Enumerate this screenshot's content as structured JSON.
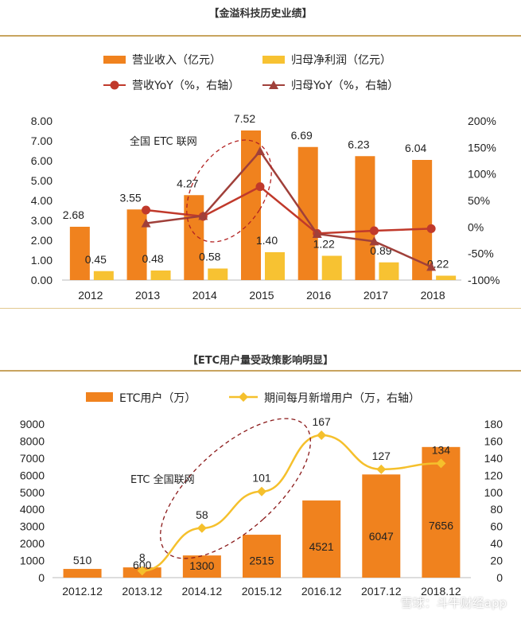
{
  "watermark": "雪球：斗牛财经app",
  "chart_data": [
    {
      "type": "bar",
      "title": "【金溢科技历史业绩】",
      "annotation": "全国 ETC 联网",
      "categories": [
        "2012",
        "2013",
        "2014",
        "2015",
        "2016",
        "2017",
        "2018"
      ],
      "y_left": {
        "ticks": [
          "0.00",
          "1.00",
          "2.00",
          "3.00",
          "4.00",
          "5.00",
          "6.00",
          "7.00",
          "8.00"
        ],
        "ylim": [
          0,
          8
        ]
      },
      "y_right": {
        "ticks": [
          "-100%",
          "-50%",
          "0%",
          "50%",
          "100%",
          "150%",
          "200%"
        ],
        "ylim": [
          -100,
          200
        ]
      },
      "series": [
        {
          "name": "营业收入（亿元）",
          "kind": "bar",
          "axis": "left",
          "color": "#f0821e",
          "values": [
            2.68,
            3.55,
            4.27,
            7.52,
            6.69,
            6.23,
            6.04
          ],
          "labels": [
            "2.68",
            "3.55",
            "4.27",
            "7.52",
            "6.69",
            "6.23",
            "6.04"
          ]
        },
        {
          "name": "归母净利润（亿元）",
          "kind": "bar",
          "axis": "left",
          "color": "#f7c232",
          "values": [
            0.45,
            0.48,
            0.58,
            1.4,
            1.22,
            0.89,
            0.22
          ],
          "labels": [
            "0.45",
            "0.48",
            "0.58",
            "1.40",
            "1.22",
            "0.89",
            "0.22"
          ]
        },
        {
          "name": "营收YoY（%，右轴）",
          "kind": "line",
          "axis": "right",
          "marker": "circle",
          "color": "#c0392b",
          "values": [
            null,
            32,
            20,
            76,
            -12,
            -7,
            -3
          ]
        },
        {
          "name": "归母YoY（%，右轴）",
          "kind": "line",
          "axis": "right",
          "marker": "triangle",
          "color": "#a0403a",
          "values": [
            null,
            7,
            21,
            143,
            -13,
            -27,
            -75
          ]
        }
      ]
    },
    {
      "type": "bar",
      "title": "【ETC用户量受政策影响明显】",
      "annotation": "ETC 全国联网",
      "categories": [
        "2012.12",
        "2013.12",
        "2014.12",
        "2015.12",
        "2016.12",
        "2017.12",
        "2018.12"
      ],
      "y_left": {
        "ticks": [
          "0",
          "1000",
          "2000",
          "3000",
          "4000",
          "5000",
          "6000",
          "7000",
          "8000",
          "9000"
        ],
        "ylim": [
          0,
          9000
        ]
      },
      "y_right": {
        "ticks": [
          "0",
          "20",
          "40",
          "60",
          "80",
          "100",
          "120",
          "140",
          "160",
          "180"
        ],
        "ylim": [
          0,
          180
        ]
      },
      "series": [
        {
          "name": "ETC用户（万）",
          "kind": "bar",
          "axis": "left",
          "color": "#f0821e",
          "values": [
            510,
            600,
            1300,
            2515,
            4521,
            6047,
            7656
          ],
          "labels": [
            "510",
            "600",
            "1300",
            "2515",
            "4521",
            "6047",
            "7656"
          ]
        },
        {
          "name": "期间每月新增用户（万，右轴）",
          "kind": "line",
          "axis": "right",
          "marker": "diamond",
          "color": "#f5c02c",
          "values": [
            null,
            8,
            58,
            101,
            167,
            127,
            134
          ],
          "labels": [
            "",
            "8",
            "58",
            "101",
            "167",
            "127",
            "134"
          ]
        }
      ]
    }
  ]
}
